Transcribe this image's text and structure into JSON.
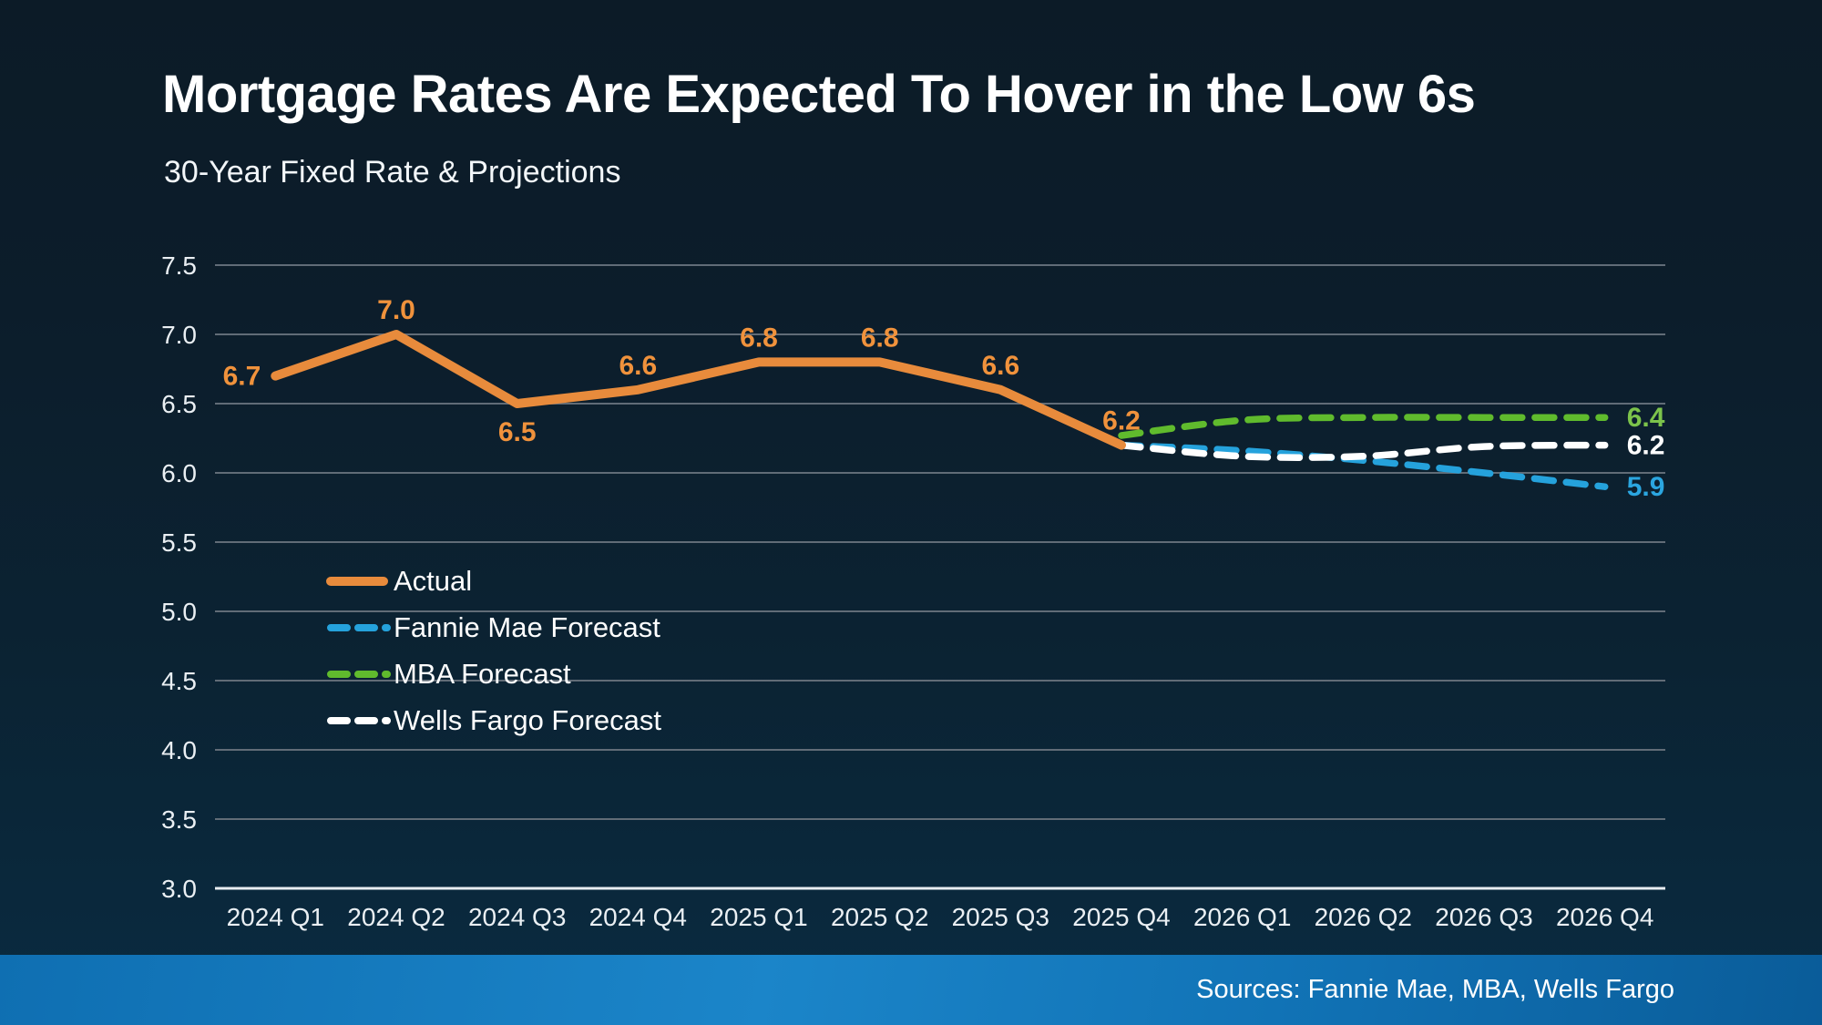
{
  "source_bar": {
    "label": "Sources: Fannie Mae, MBA, Wells Fargo"
  },
  "colors": {
    "background_top": "#0C1B27",
    "background_bottom": "#092B41",
    "gridline": "#616C77",
    "axis_line": "#E8EDF1",
    "tick_text": "#EAEFF3",
    "title_text": "#FFFFFF",
    "source_bar_blue": "#1B85C9"
  },
  "chart_data": {
    "type": "line",
    "title": "Mortgage Rates Are Expected To Hover in the Low 6s",
    "subtitle": "30-Year Fixed Rate & Projections",
    "xlabel": "",
    "ylabel": "",
    "grid": true,
    "legend_position": "center-left",
    "ylim": [
      3.0,
      7.5
    ],
    "ytick_step": 0.5,
    "yticks": [
      "7.5",
      "7.0",
      "6.5",
      "6.0",
      "5.5",
      "5.0",
      "4.5",
      "4.0",
      "3.5",
      "3.0"
    ],
    "categories": [
      "2024 Q1",
      "2024 Q2",
      "2024 Q3",
      "2024 Q4",
      "2025 Q1",
      "2025 Q2",
      "2025 Q3",
      "2025 Q4",
      "2026 Q1",
      "2026 Q2",
      "2026 Q3",
      "2026 Q4"
    ],
    "series": [
      {
        "name": "Actual",
        "style": "solid",
        "color": "#E88B3C",
        "label_color": "#F0923C",
        "values": [
          6.7,
          7.0,
          6.5,
          6.6,
          6.8,
          6.8,
          6.6,
          6.2,
          null,
          null,
          null,
          null
        ],
        "point_labels": [
          {
            "index": 0,
            "text": "6.7",
            "placement": "left"
          },
          {
            "index": 1,
            "text": "7.0",
            "placement": "above"
          },
          {
            "index": 2,
            "text": "6.5",
            "placement": "below"
          },
          {
            "index": 3,
            "text": "6.6",
            "placement": "above"
          },
          {
            "index": 4,
            "text": "6.8",
            "placement": "above"
          },
          {
            "index": 5,
            "text": "6.8",
            "placement": "above"
          },
          {
            "index": 6,
            "text": "6.6",
            "placement": "above"
          },
          {
            "index": 7,
            "text": "6.2",
            "placement": "above"
          }
        ]
      },
      {
        "name": "Fannie Mae Forecast",
        "style": "dashed",
        "color": "#25A2DC",
        "label_color": "#2BA6E0",
        "values": [
          null,
          null,
          null,
          null,
          null,
          null,
          null,
          6.2,
          6.16,
          6.09,
          6.0,
          5.9
        ],
        "end_label": "5.9"
      },
      {
        "name": "MBA Forecast",
        "style": "dashed",
        "color": "#60BB2D",
        "label_color": "#7CC34B",
        "values": [
          null,
          null,
          null,
          null,
          null,
          null,
          null,
          6.27,
          6.38,
          6.4,
          6.4,
          6.4
        ],
        "end_label": "6.4"
      },
      {
        "name": "Wells Fargo Forecast",
        "style": "dashed",
        "color": "#FFFFFF",
        "label_color": "#FFFFFF",
        "values": [
          null,
          null,
          null,
          null,
          null,
          null,
          null,
          6.2,
          6.12,
          6.12,
          6.19,
          6.2
        ],
        "end_label": "6.2"
      }
    ]
  }
}
